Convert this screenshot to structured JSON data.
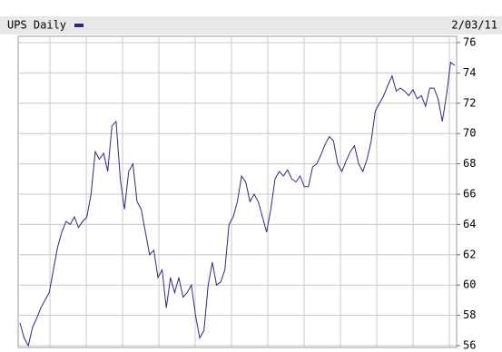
{
  "chart_data": {
    "type": "line",
    "date": "2/03/11",
    "series": [
      {
        "name": "UPS Daily",
        "color": "#2b2b7a",
        "values": [
          57.5,
          56.5,
          56,
          57.2,
          57.8,
          58.5,
          59,
          59.5,
          61,
          62.5,
          63.5,
          64.2,
          64,
          64.5,
          63.8,
          64.2,
          64.5,
          66,
          68.8,
          68.3,
          68.7,
          67.5,
          70.5,
          70.8,
          67,
          65,
          67.5,
          68,
          65.5,
          65,
          63.5,
          62,
          62.3,
          60.5,
          61,
          58.5,
          60.5,
          59.5,
          60.5,
          59.2,
          59.5,
          60,
          58,
          56.5,
          57,
          60,
          61.5,
          60,
          60.2,
          61,
          64,
          64.5,
          65.5,
          67.2,
          66.8,
          65.5,
          66,
          65.5,
          64.5,
          63.5,
          65,
          67,
          67.5,
          67.2,
          67.6,
          67,
          66.8,
          67.2,
          66.5,
          66.5,
          67.8,
          68,
          68.6,
          69.3,
          69.8,
          69.5,
          68,
          67.5,
          68.2,
          68.8,
          69.2,
          68,
          67.5,
          68.3,
          69.5,
          71.5,
          72,
          72.5,
          73.2,
          73.8,
          72.8,
          73,
          72.8,
          72.5,
          72.9,
          72.3,
          72.5,
          71.8,
          73,
          73,
          72.3,
          70.8,
          72.5,
          74.7,
          74.5
        ]
      }
    ],
    "ylim": [
      56,
      76
    ],
    "yticks": [
      56,
      58,
      60,
      62,
      64,
      66,
      68,
      70,
      72,
      74,
      76
    ],
    "grid": true
  }
}
